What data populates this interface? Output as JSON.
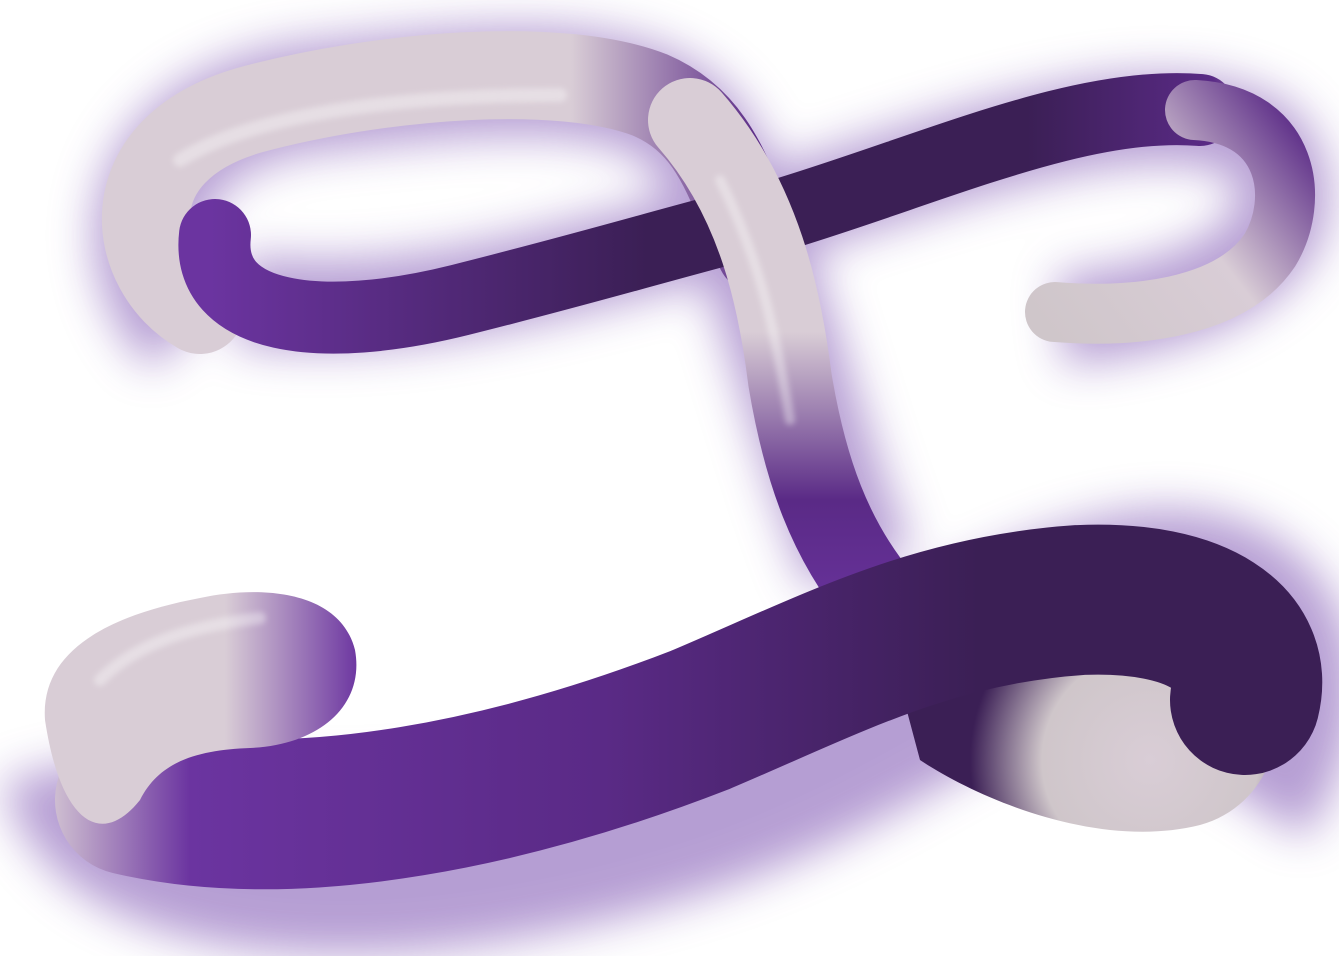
{
  "artwork": {
    "subject": "ribbon-tube-sculpture",
    "colors": {
      "background": "#ffffff",
      "deep_purple": "#3b1f55",
      "mid_purple": "#5a2a86",
      "bright_purple": "#6b34a0",
      "pale_lilac": "#d9cdd6",
      "pale_grey": "#cfc6ca",
      "glow": "#7a4fb0"
    }
  }
}
